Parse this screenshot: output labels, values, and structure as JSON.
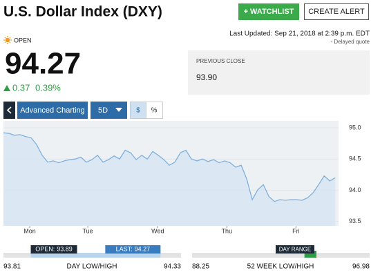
{
  "header": {
    "title": "U.S. Dollar Index (DXY)",
    "watchlist_button": "+ WATCHLIST",
    "alert_button": "CREATE ALERT"
  },
  "quote": {
    "status": "OPEN",
    "last_updated": "Last Updated: Sep 21, 2018 at 2:39 p.m. EDT",
    "delayed": "- Delayed quote",
    "price": "94.27",
    "change": "0.37",
    "change_percent": "0.39%",
    "previous_close_label": "PREVIOUS CLOSE",
    "previous_close": "93.90"
  },
  "toolbar": {
    "advanced": "Advanced Charting",
    "period": "5D",
    "dollar": "$",
    "percent": "%"
  },
  "chart_data": {
    "type": "line",
    "color": "#7fb0dc",
    "x": [
      0,
      1,
      2,
      3,
      4,
      5,
      6,
      7,
      8,
      9,
      10,
      11,
      12,
      13,
      14,
      15,
      16,
      17,
      18,
      19,
      20,
      21,
      22,
      23,
      24,
      25,
      26,
      27,
      28,
      29,
      30,
      31,
      32,
      33,
      34,
      35,
      36,
      37,
      38,
      39,
      40,
      41,
      42,
      43,
      44,
      45,
      46,
      47,
      48,
      49,
      50,
      51,
      52,
      53,
      54,
      55,
      56,
      57,
      58,
      59,
      60
    ],
    "values": [
      94.92,
      94.91,
      94.88,
      94.89,
      94.86,
      94.84,
      94.73,
      94.56,
      94.45,
      94.47,
      94.44,
      94.47,
      94.49,
      94.5,
      94.53,
      94.45,
      94.49,
      94.56,
      94.45,
      94.49,
      94.55,
      94.5,
      94.64,
      94.6,
      94.49,
      94.56,
      94.5,
      94.62,
      94.56,
      94.49,
      94.4,
      94.45,
      94.6,
      94.64,
      94.5,
      94.47,
      94.5,
      94.46,
      94.49,
      94.44,
      94.47,
      94.44,
      94.37,
      94.4,
      94.18,
      93.85,
      94.01,
      94.09,
      93.9,
      93.82,
      93.85,
      93.84,
      93.85,
      93.85,
      93.84,
      93.88,
      93.96,
      94.09,
      94.23,
      94.15,
      94.2
    ],
    "xlim": [
      0,
      60.6
    ],
    "xticks": [
      {
        "value": 4.75,
        "label": "Mon"
      },
      {
        "value": 15.25,
        "label": "Tue"
      },
      {
        "value": 27.9,
        "label": "Wed"
      },
      {
        "value": 40.4,
        "label": "Thu"
      },
      {
        "value": 52.9,
        "label": "Fri"
      }
    ],
    "ylim": [
      93.43,
      95.11
    ],
    "yticks": [
      {
        "value": 93.5,
        "label": "93.5"
      },
      {
        "value": 94,
        "label": "94.0"
      },
      {
        "value": 94.5,
        "label": "94.5"
      },
      {
        "value": 95,
        "label": "95.0"
      }
    ]
  },
  "day_range": {
    "low": 93.81,
    "high": 94.33,
    "title": "DAY LOW/HIGH",
    "open_label": "OPEN:",
    "open": 93.89,
    "last_label": "LAST:",
    "last": 94.27
  },
  "week52": {
    "low": 88.25,
    "high": 96.98,
    "title": "52 WEEK LOW/HIGH",
    "marker_label": "DAY RANGE"
  }
}
